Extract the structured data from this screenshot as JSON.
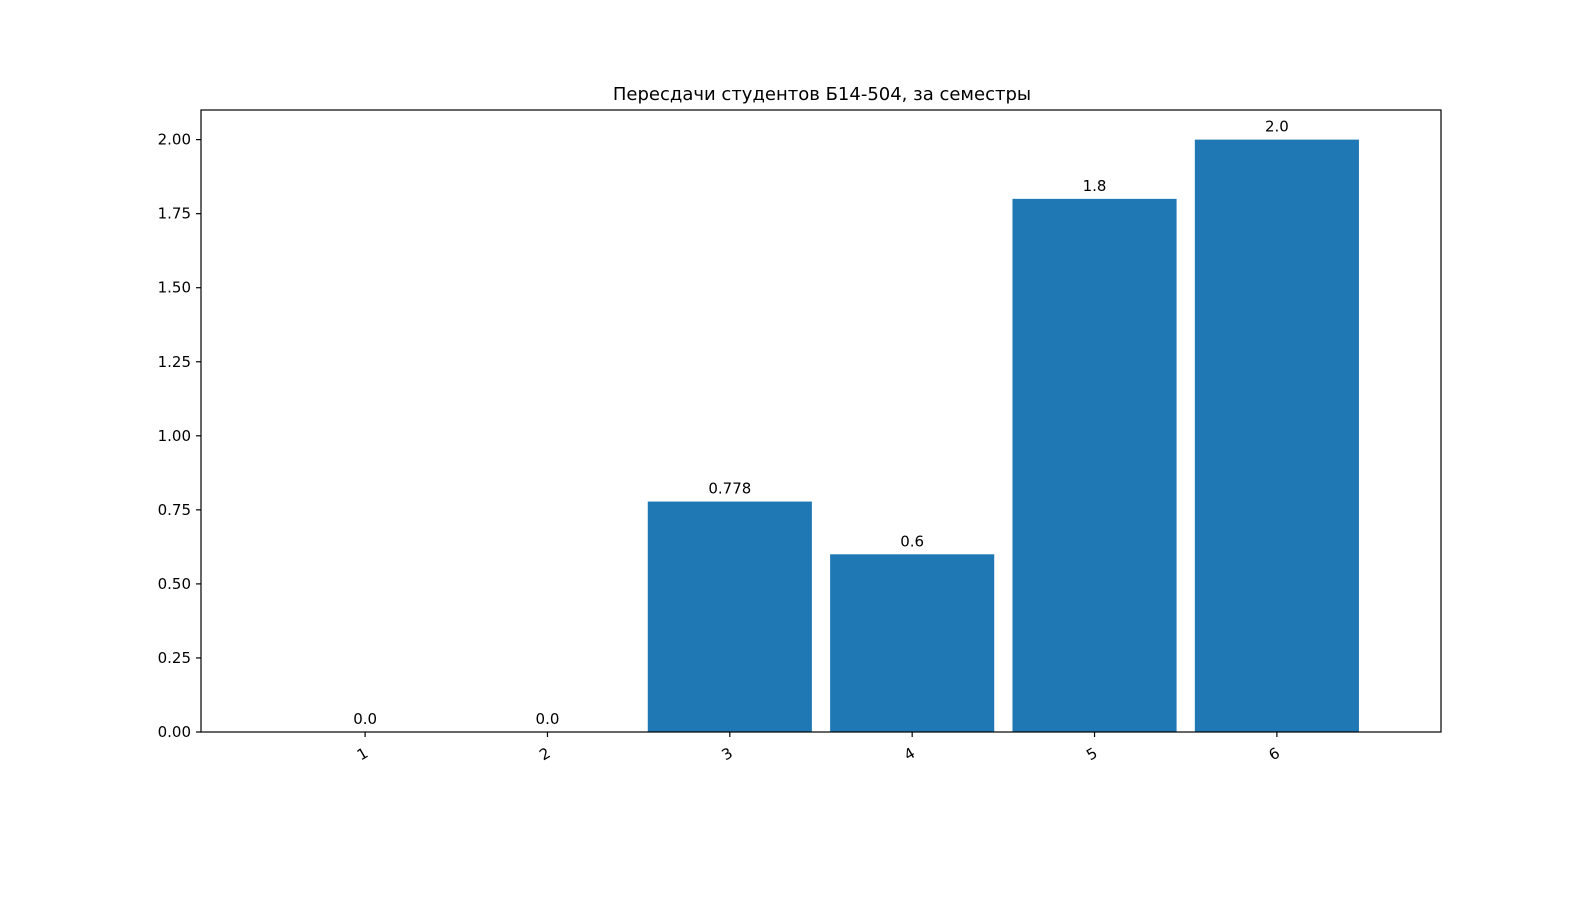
{
  "chart_data": {
    "type": "bar",
    "title": "Пересдачи студентов Б14-504, за семестры",
    "xlabel": "",
    "ylabel": "",
    "categories": [
      "1",
      "2",
      "3",
      "4",
      "5",
      "6"
    ],
    "values": [
      0.0,
      0.0,
      0.778,
      0.6,
      1.8,
      2.0
    ],
    "value_labels": [
      "0.0",
      "0.0",
      "0.778",
      "0.6",
      "1.8",
      "2.0"
    ],
    "ylim": [
      0,
      2.1
    ],
    "yticks": [
      0.0,
      0.25,
      0.5,
      0.75,
      1.0,
      1.25,
      1.5,
      1.75,
      2.0
    ],
    "ytick_labels": [
      "0.00",
      "0.25",
      "0.50",
      "0.75",
      "1.00",
      "1.25",
      "1.50",
      "1.75",
      "2.00"
    ],
    "bar_color": "#1f77b4",
    "grid": false,
    "legend": "none",
    "xtick_rotation_deg": 30
  }
}
